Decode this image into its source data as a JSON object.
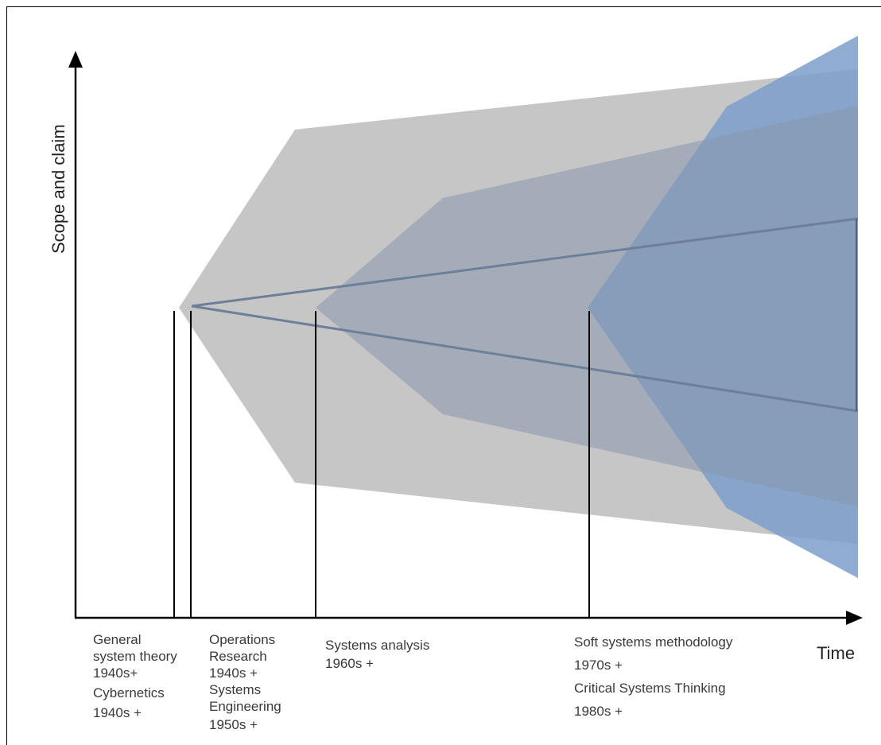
{
  "axes": {
    "y_label": "Scope and claim",
    "x_label": "Time"
  },
  "milestones": [
    {
      "lines": [
        "General",
        "system theory",
        "1940s+",
        "Cybernetics",
        "1940s +"
      ]
    },
    {
      "lines": [
        "Operations",
        "Research",
        "1940s +",
        "Systems",
        "Engineering",
        "1950s +"
      ]
    },
    {
      "lines": [
        "Systems analysis",
        "1960s +"
      ]
    },
    {
      "lines": [
        "Soft systems methodology",
        "1970s +",
        "Critical Systems Thinking",
        "1980s +"
      ]
    }
  ],
  "colors": {
    "gray_region": "#c8c8c8",
    "blue_region": "#7f9fc8",
    "line_color": "#6d7f99",
    "axis": "#000000"
  }
}
